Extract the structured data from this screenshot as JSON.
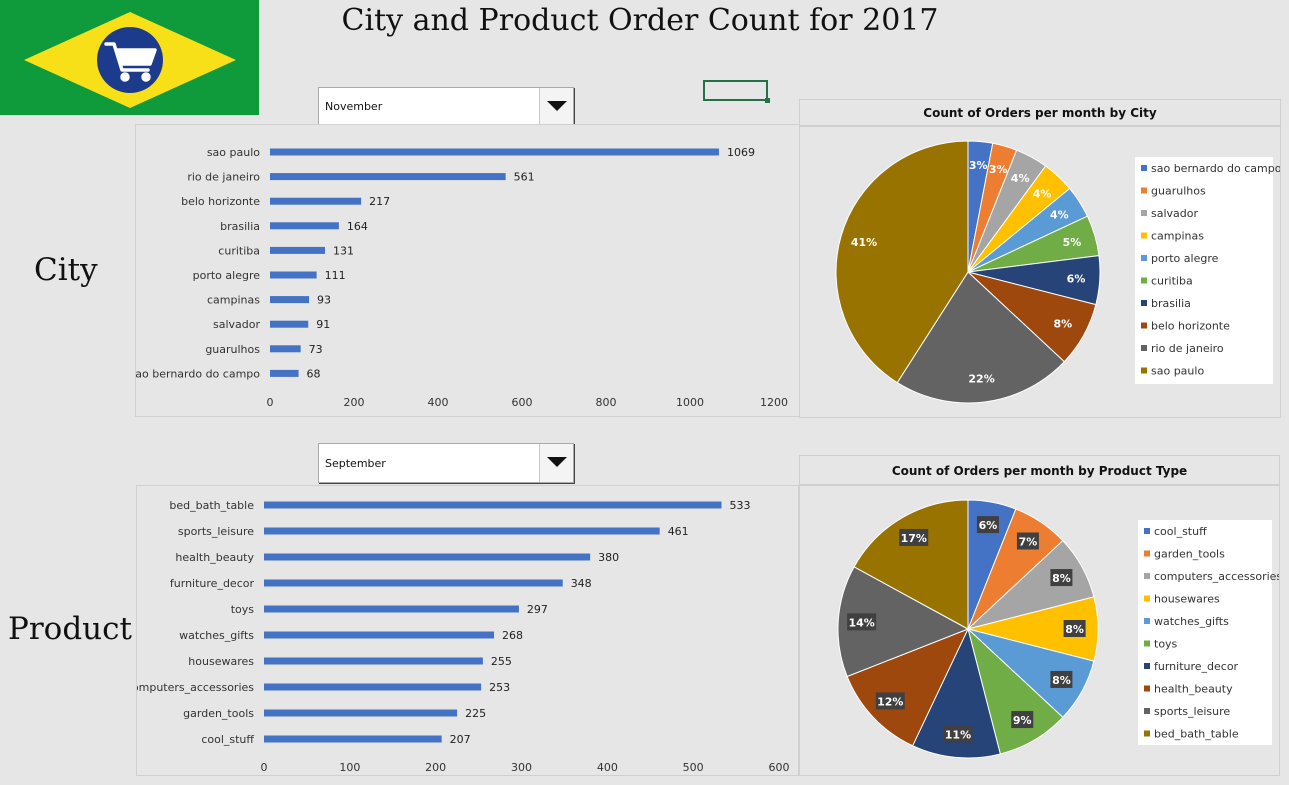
{
  "title": "City and Product Order Count for 2017",
  "labels": {
    "city": "City",
    "product": "Product"
  },
  "dropdowns": {
    "city_month": "November",
    "product_month": "September"
  },
  "colors": {
    "bar": "#4472c4",
    "pie": [
      "#4472c4",
      "#ed7d31",
      "#a5a5a5",
      "#ffc000",
      "#5b9bd5",
      "#70ad47",
      "#264478",
      "#9e480e",
      "#636363",
      "#997300"
    ],
    "flag_green": "#0f9a3c",
    "flag_yellow": "#f7e017",
    "flag_blue": "#1d3b8c"
  },
  "icons": {
    "logo": "shopping-cart-icon",
    "dropdown": "caret-down-icon"
  },
  "chart_data": [
    {
      "type": "bar",
      "orientation": "horizontal",
      "categories": [
        "sao paulo",
        "rio de janeiro",
        "belo horizonte",
        "brasilia",
        "curitiba",
        "porto alegre",
        "campinas",
        "salvador",
        "guarulhos",
        "sao bernardo do campo"
      ],
      "values": [
        1069,
        561,
        217,
        164,
        131,
        111,
        93,
        91,
        73,
        68
      ],
      "xlim": [
        0,
        1200
      ],
      "xticks": [
        "0",
        "200",
        "400",
        "600",
        "800",
        "1000",
        "1200"
      ],
      "data_labels": true
    },
    {
      "type": "pie",
      "title": "Count of Orders per month by City",
      "categories": [
        "sao bernardo do campo",
        "guarulhos",
        "salvador",
        "campinas",
        "porto alegre",
        "curitiba",
        "brasilia",
        "belo horizonte",
        "rio de janeiro",
        "sao paulo"
      ],
      "values": [
        3,
        3,
        4,
        4,
        4,
        5,
        6,
        8,
        22,
        41
      ],
      "labels": [
        "3%",
        "3%",
        "4%",
        "4%",
        "4%",
        "5%",
        "6%",
        "8%",
        "22%",
        "41%"
      ],
      "legend": "right"
    },
    {
      "type": "bar",
      "orientation": "horizontal",
      "categories": [
        "bed_bath_table",
        "sports_leisure",
        "health_beauty",
        "furniture_decor",
        "toys",
        "watches_gifts",
        "housewares",
        "computers_accessories",
        "garden_tools",
        "cool_stuff"
      ],
      "values": [
        533,
        461,
        380,
        348,
        297,
        268,
        255,
        253,
        225,
        207
      ],
      "xlim": [
        0,
        600
      ],
      "xticks": [
        "0",
        "100",
        "200",
        "300",
        "400",
        "500",
        "600"
      ],
      "data_labels": true
    },
    {
      "type": "pie",
      "title": "Count of Orders per month by Product Type",
      "categories": [
        "cool_stuff",
        "garden_tools",
        "computers_accessories",
        "housewares",
        "watches_gifts",
        "toys",
        "furniture_decor",
        "health_beauty",
        "sports_leisure",
        "bed_bath_table"
      ],
      "values": [
        6,
        7,
        8,
        8,
        8,
        9,
        11,
        12,
        14,
        17
      ],
      "labels": [
        "6%",
        "7%",
        "8%",
        "8%",
        "8%",
        "9%",
        "11%",
        "12%",
        "14%",
        "17%"
      ],
      "legend": "right"
    }
  ]
}
